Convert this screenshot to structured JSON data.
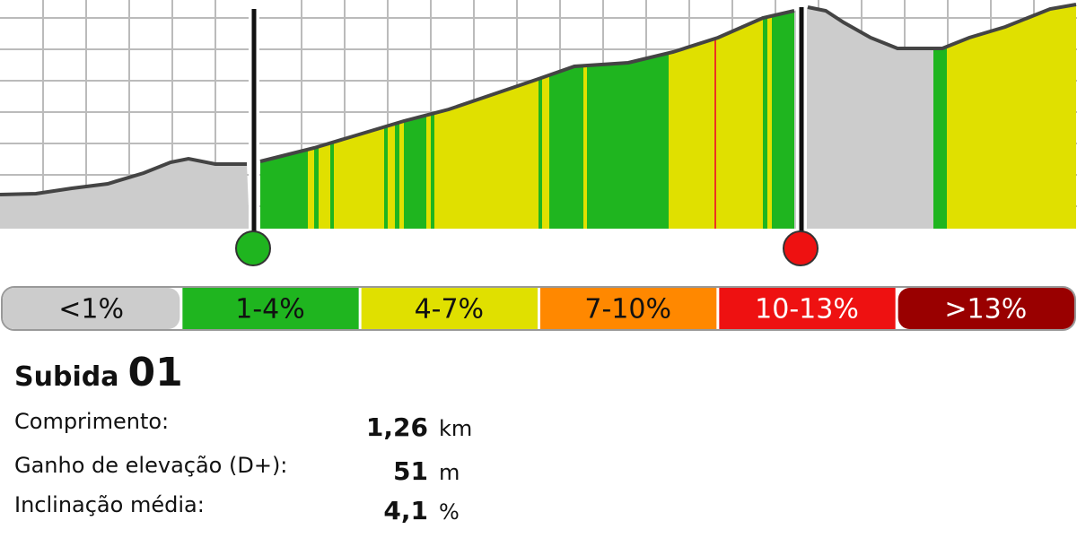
{
  "legend": [
    "<1%",
    "1-4%",
    "4-7%",
    "7-10%",
    "10-13%",
    ">13%"
  ],
  "climb": {
    "label": "Subida",
    "number": "01"
  },
  "stats": [
    {
      "label": "Comprimento:",
      "value": "1,26",
      "unit": "km"
    },
    {
      "label": "Ganho de elevação (D+):",
      "value": "51",
      "unit": "m"
    },
    {
      "label": "Inclinação média:",
      "value": "4,1",
      "unit": "%"
    }
  ]
}
